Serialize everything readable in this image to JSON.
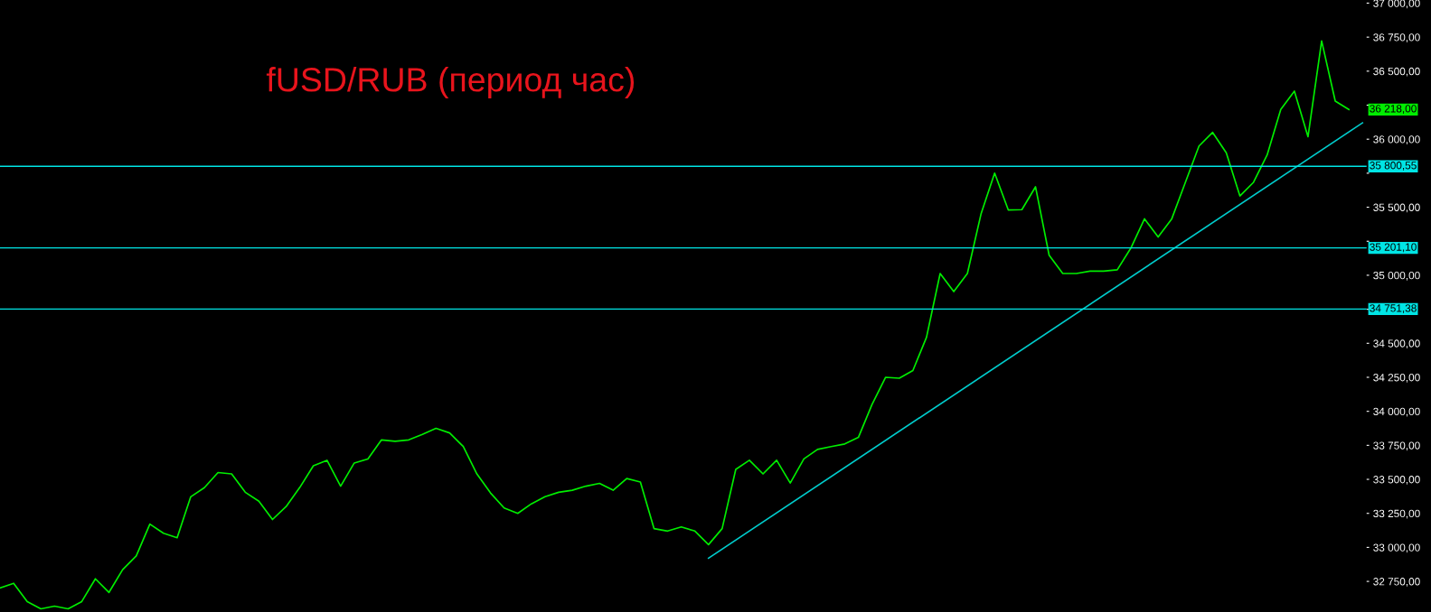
{
  "chart_data": {
    "type": "line",
    "title": "fUSD/RUB (период час)",
    "categories": [
      null,
      null,
      null,
      null,
      null,
      null,
      null,
      null,
      null,
      null,
      null,
      null,
      null,
      null,
      null,
      null,
      null,
      null,
      null,
      null,
      null,
      null,
      null,
      null,
      null,
      null,
      null,
      null,
      null,
      null,
      null,
      null,
      null,
      null,
      null,
      null,
      null,
      null,
      null,
      null,
      null,
      null,
      null,
      null,
      null,
      null,
      null,
      null,
      null,
      null,
      null,
      null,
      null,
      null,
      null,
      null,
      null,
      null,
      null,
      null,
      null,
      null,
      null,
      null,
      null,
      null,
      null,
      null,
      null,
      null,
      null,
      null,
      null,
      null,
      null,
      null,
      null,
      null,
      null,
      null,
      null,
      null,
      null,
      null,
      null,
      null,
      null,
      null,
      null,
      null,
      null,
      null,
      null,
      null,
      null,
      null,
      null,
      null,
      null,
      null,
      null
    ],
    "series": [
      {
        "color": "#00ee00",
        "values": [
          32702,
          32736,
          32602,
          32548,
          32568,
          32548,
          32602,
          32769,
          32669,
          32836,
          32937,
          33171,
          33104,
          33071,
          33372,
          33439,
          33550,
          33540,
          33405,
          33339,
          33205,
          33300,
          33440,
          33600,
          33640,
          33450,
          33620,
          33650,
          33790,
          33780,
          33790,
          33830,
          33875,
          33841,
          33741,
          33540,
          33400,
          33290,
          33250,
          33320,
          33372,
          33405,
          33420,
          33450,
          33470,
          33420,
          33506,
          33480,
          33138,
          33120,
          33150,
          33120,
          33020,
          33138,
          33573,
          33640,
          33540,
          33640,
          33473,
          33650,
          33720,
          33741,
          33760,
          33808,
          34050,
          34250,
          34243,
          34300,
          34544,
          35013,
          34880,
          35013,
          35450,
          35751,
          35480,
          35482,
          35650,
          35147,
          35013,
          35013,
          35030,
          35030,
          35040,
          35200,
          35415,
          35281,
          35415,
          35683,
          35950,
          36050,
          35900,
          35583,
          35683,
          35884,
          36219,
          36353,
          36018,
          36722,
          36280,
          36218,
          null
        ]
      },
      {
        "color": "#00cccc",
        "values": [
          null,
          null,
          null,
          null,
          null,
          null,
          null,
          null,
          null,
          null,
          null,
          null,
          null,
          null,
          null,
          null,
          null,
          null,
          null,
          null,
          null,
          null,
          null,
          null,
          null,
          null,
          null,
          null,
          null,
          null,
          null,
          null,
          null,
          null,
          null,
          null,
          null,
          null,
          null,
          null,
          null,
          null,
          null,
          null,
          null,
          null,
          null,
          null,
          null,
          null,
          null,
          null,
          32920,
          null,
          null,
          null,
          null,
          null,
          null,
          null,
          null,
          null,
          null,
          null,
          null,
          null,
          null,
          null,
          null,
          null,
          null,
          null,
          null,
          null,
          null,
          null,
          null,
          null,
          null,
          null,
          null,
          null,
          null,
          null,
          null,
          null,
          null,
          null,
          null,
          null,
          null,
          null,
          null,
          null,
          null,
          null,
          null,
          null,
          null,
          null,
          36120
        ]
      }
    ],
    "ylim": [
      32525,
      37023
    ],
    "yticks": [
      {
        "value": 32750,
        "label": "32 750,00"
      },
      {
        "value": 33000,
        "label": "33 000,00"
      },
      {
        "value": 33250,
        "label": "33 250,00"
      },
      {
        "value": 33500,
        "label": "33 500,00"
      },
      {
        "value": 33750,
        "label": "33 750,00"
      },
      {
        "value": 34000,
        "label": "34 000,00"
      },
      {
        "value": 34250,
        "label": "34 250,00"
      },
      {
        "value": 34500,
        "label": "34 500,00"
      },
      {
        "value": 34750,
        "label": null
      },
      {
        "value": 35000,
        "label": "35 000,00"
      },
      {
        "value": 35250,
        "label": null
      },
      {
        "value": 35500,
        "label": "35 500,00"
      },
      {
        "value": 35750,
        "label": null
      },
      {
        "value": 36000,
        "label": "36 000,00"
      },
      {
        "value": 36250,
        "label": null
      },
      {
        "value": 36500,
        "label": "36 500,00"
      },
      {
        "value": 36750,
        "label": "36 750,00"
      },
      {
        "value": 37000,
        "label": "37 000,00"
      }
    ],
    "tick_labels": "y",
    "grid": false,
    "ref_lines": [
      {
        "axis": "y",
        "value": 35800.55,
        "label": "35 800,55",
        "color": "#00e5e5"
      },
      {
        "axis": "y",
        "value": 35201.1,
        "label": "35 201,10",
        "color": "#00e5e5"
      },
      {
        "axis": "y",
        "value": 34751.38,
        "label": "34 751,38",
        "color": "#00e5e5"
      }
    ],
    "annotations": [
      "36 218,00"
    ]
  }
}
